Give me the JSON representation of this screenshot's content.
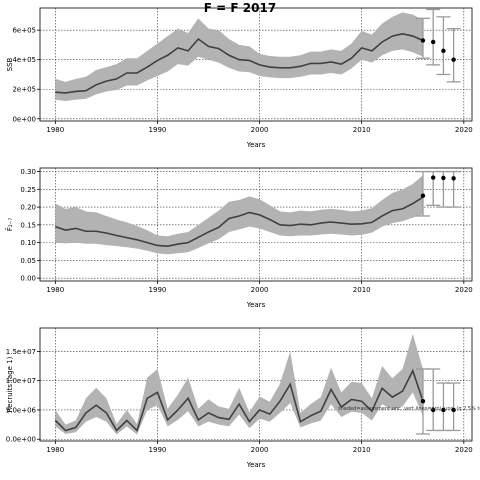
{
  "title": "F = F 2017",
  "note": "shaded=assessment unc. vert.lines=proj. unc. (q.2.5% to q.97.5%)",
  "chart_data": [
    {
      "type": "line",
      "ylabel": "SSB",
      "xlabel": "Years",
      "xlim": [
        1978.5,
        2020.8
      ],
      "ylim": [
        -15000,
        750000
      ],
      "yticks": [
        0,
        200000,
        400000,
        600000
      ],
      "ytick_labels": [
        "0e+00",
        "2e+05",
        "4e+05",
        "6e+05"
      ],
      "xticks": [
        1980,
        1990,
        2000,
        2010,
        2020
      ],
      "xtick_labels": [
        "1980",
        "1990",
        "2000",
        "2010",
        "2020"
      ],
      "grid": true,
      "x": [
        1980,
        1981,
        1982,
        1983,
        1984,
        1985,
        1986,
        1987,
        1988,
        1989,
        1990,
        1991,
        1992,
        1993,
        1994,
        1995,
        1996,
        1997,
        1998,
        1999,
        2000,
        2001,
        2002,
        2003,
        2004,
        2005,
        2006,
        2007,
        2008,
        2009,
        2010,
        2011,
        2012,
        2013,
        2014,
        2015,
        2016
      ],
      "y": [
        180000,
        175000,
        185000,
        190000,
        230000,
        255000,
        270000,
        310000,
        310000,
        350000,
        395000,
        430000,
        480000,
        460000,
        540000,
        490000,
        475000,
        430000,
        400000,
        395000,
        365000,
        350000,
        345000,
        345000,
        355000,
        375000,
        375000,
        385000,
        370000,
        410000,
        480000,
        460000,
        520000,
        560000,
        575000,
        560000,
        530000
      ],
      "lower": [
        130000,
        120000,
        130000,
        135000,
        165000,
        185000,
        195000,
        225000,
        225000,
        260000,
        290000,
        320000,
        370000,
        360000,
        420000,
        400000,
        380000,
        345000,
        320000,
        315000,
        290000,
        280000,
        275000,
        275000,
        285000,
        300000,
        300000,
        310000,
        300000,
        340000,
        400000,
        380000,
        430000,
        460000,
        470000,
        450000,
        420000
      ],
      "upper": [
        270000,
        250000,
        270000,
        285000,
        330000,
        350000,
        370000,
        410000,
        410000,
        460000,
        510000,
        560000,
        610000,
        580000,
        680000,
        610000,
        600000,
        540000,
        500000,
        490000,
        440000,
        425000,
        420000,
        420000,
        430000,
        455000,
        455000,
        470000,
        460000,
        510000,
        595000,
        570000,
        645000,
        690000,
        720000,
        705000,
        670000
      ],
      "projection": {
        "x": [
          2016,
          2017,
          2018,
          2019
        ],
        "median": [
          530000,
          520000,
          460000,
          400000
        ],
        "low": [
          410000,
          365000,
          300000,
          250000
        ],
        "high": [
          680000,
          740000,
          690000,
          610000
        ]
      }
    },
    {
      "type": "line",
      "ylabel": "\\bar{F}₂₋₇",
      "xlabel": "Years",
      "xlim": [
        1978.5,
        2020.8
      ],
      "ylim": [
        -0.008,
        0.31
      ],
      "yticks": [
        0,
        0.05,
        0.1,
        0.15,
        0.2,
        0.25,
        0.3
      ],
      "ytick_labels": [
        "0.00",
        "0.05",
        "0.10",
        "0.15",
        "0.20",
        "0.25",
        "0.30"
      ],
      "xticks": [
        1980,
        1990,
        2000,
        2010,
        2020
      ],
      "xtick_labels": [
        "1980",
        "1990",
        "2000",
        "2010",
        "2020"
      ],
      "grid": true,
      "x": [
        1980,
        1981,
        1982,
        1983,
        1984,
        1985,
        1986,
        1987,
        1988,
        1989,
        1990,
        1991,
        1992,
        1993,
        1994,
        1995,
        1996,
        1997,
        1998,
        1999,
        2000,
        2001,
        2002,
        2003,
        2004,
        2005,
        2006,
        2007,
        2008,
        2009,
        2010,
        2011,
        2012,
        2013,
        2014,
        2015,
        2016
      ],
      "y": [
        0.145,
        0.135,
        0.14,
        0.132,
        0.132,
        0.127,
        0.12,
        0.114,
        0.108,
        0.1,
        0.092,
        0.09,
        0.096,
        0.1,
        0.115,
        0.13,
        0.143,
        0.168,
        0.175,
        0.185,
        0.178,
        0.165,
        0.15,
        0.148,
        0.152,
        0.15,
        0.155,
        0.158,
        0.155,
        0.152,
        0.153,
        0.157,
        0.175,
        0.19,
        0.195,
        0.21,
        0.228
      ],
      "lower": [
        0.1,
        0.098,
        0.1,
        0.097,
        0.097,
        0.093,
        0.09,
        0.087,
        0.083,
        0.077,
        0.07,
        0.067,
        0.07,
        0.073,
        0.085,
        0.098,
        0.11,
        0.13,
        0.137,
        0.145,
        0.14,
        0.13,
        0.12,
        0.118,
        0.12,
        0.12,
        0.123,
        0.125,
        0.123,
        0.12,
        0.122,
        0.128,
        0.145,
        0.155,
        0.16,
        0.17,
        0.18
      ],
      "upper": [
        0.21,
        0.195,
        0.2,
        0.188,
        0.185,
        0.175,
        0.165,
        0.157,
        0.147,
        0.135,
        0.12,
        0.118,
        0.125,
        0.13,
        0.15,
        0.17,
        0.19,
        0.215,
        0.22,
        0.23,
        0.222,
        0.205,
        0.188,
        0.185,
        0.19,
        0.188,
        0.192,
        0.195,
        0.192,
        0.188,
        0.19,
        0.197,
        0.22,
        0.24,
        0.25,
        0.265,
        0.29
      ],
      "projection": {
        "x": [
          2016,
          2017,
          2018,
          2019
        ],
        "median": [
          0.232,
          0.283,
          0.282,
          0.281
        ],
        "low": [
          0.175,
          0.205,
          0.2,
          0.2
        ],
        "high": [
          0.3,
          0.3,
          0.3,
          0.3
        ]
      }
    },
    {
      "type": "line",
      "ylabel": "Recruits (age 1)",
      "xlabel": "Years",
      "xlim": [
        1978.5,
        2020.8
      ],
      "ylim": [
        -300000,
        19000000
      ],
      "yticks": [
        0,
        5000000,
        10000000,
        15000000
      ],
      "ytick_labels": [
        "0.0e+00",
        "5.0e+06",
        "1.0e+07",
        "1.5e+07"
      ],
      "xticks": [
        1980,
        1990,
        2000,
        2010,
        2020
      ],
      "xtick_labels": [
        "1980",
        "1990",
        "2000",
        "2010",
        "2020"
      ],
      "grid": true,
      "x": [
        1980,
        1981,
        1982,
        1983,
        1984,
        1985,
        1986,
        1987,
        1988,
        1989,
        1990,
        1991,
        1992,
        1993,
        1994,
        1995,
        1996,
        1997,
        1998,
        1999,
        2000,
        2001,
        2002,
        2003,
        2004,
        2005,
        2006,
        2007,
        2008,
        2009,
        2010,
        2011,
        2012,
        2013,
        2014,
        2015,
        2016
      ],
      "y": [
        3200000,
        1500000,
        2000000,
        4500000,
        5800000,
        4500000,
        1500000,
        3200000,
        1500000,
        7000000,
        8000000,
        3300000,
        5000000,
        7000000,
        3300000,
        4500000,
        3700000,
        3400000,
        6000000,
        3000000,
        5000000,
        4300000,
        6500000,
        9400000,
        3000000,
        4000000,
        4800000,
        8500000,
        5500000,
        6800000,
        6500000,
        4800000,
        8700000,
        7200000,
        8200000,
        11700000,
        6500000
      ],
      "lower": [
        2200000,
        900000,
        1200000,
        3000000,
        3800000,
        3000000,
        800000,
        2200000,
        800000,
        5000000,
        5800000,
        2200000,
        3300000,
        4800000,
        2200000,
        3000000,
        2500000,
        2200000,
        4200000,
        1900000,
        3500000,
        3000000,
        4500000,
        6200000,
        2000000,
        2700000,
        3200000,
        6000000,
        3800000,
        4700000,
        4500000,
        3200000,
        6000000,
        5000000,
        5600000,
        8000000,
        4000000
      ],
      "upper": [
        5000000,
        2500000,
        3200000,
        7000000,
        8800000,
        7000000,
        2600000,
        5000000,
        2600000,
        10500000,
        12000000,
        5200000,
        7600000,
        10500000,
        5200000,
        6800000,
        5600000,
        5200000,
        8800000,
        4600000,
        7300000,
        6400000,
        9500000,
        15000000,
        4500000,
        6000000,
        7200000,
        12200000,
        8000000,
        9800000,
        9600000,
        7000000,
        12500000,
        10400000,
        12000000,
        18000000,
        12000000
      ],
      "projection": {
        "x": [
          2016,
          2017,
          2018,
          2019
        ],
        "median": [
          6500000,
          5000000,
          5000000,
          5000000
        ],
        "low": [
          900000,
          1500000,
          1500000,
          1500000
        ],
        "high": [
          12000000,
          12000000,
          9600000,
          9600000
        ]
      }
    }
  ]
}
